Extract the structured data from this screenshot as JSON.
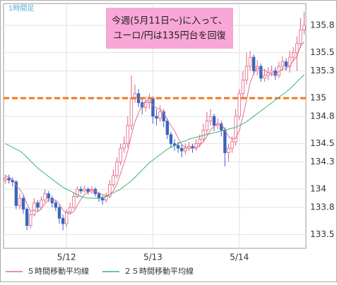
{
  "chart_data": {
    "type": "candlestick",
    "timeframe_label": "1時間足",
    "annotation": [
      "今週(5月11日〜)に入って、",
      "ユーロ/円は135円台を回復"
    ],
    "categories": [
      null,
      null,
      null,
      null,
      null,
      null,
      null,
      null,
      null,
      null,
      null,
      null,
      null,
      null,
      null,
      null,
      null,
      "5/12",
      null,
      null,
      null,
      null,
      null,
      null,
      null,
      null,
      null,
      null,
      null,
      null,
      null,
      null,
      null,
      null,
      null,
      null,
      null,
      null,
      null,
      null,
      null,
      "5/13",
      null,
      null,
      null,
      null,
      null,
      null,
      null,
      null,
      null,
      null,
      null,
      null,
      null,
      null,
      null,
      null,
      null,
      null,
      null,
      null,
      null,
      null,
      null,
      "5/14",
      null,
      null,
      null,
      null,
      null,
      null,
      null,
      null,
      null,
      null,
      null,
      null,
      null,
      null,
      null,
      null,
      null,
      null
    ],
    "open": [
      134.1,
      134.12,
      134.1,
      134.08,
      133.82,
      133.9,
      133.78,
      133.6,
      133.72,
      133.85,
      133.8,
      133.88,
      133.95,
      133.9,
      133.85,
      133.8,
      133.68,
      133.62,
      133.75,
      133.8,
      133.92,
      134.0,
      133.98,
      134.0,
      133.97,
      134.0,
      133.95,
      133.9,
      133.88,
      133.92,
      134.05,
      134.15,
      134.3,
      134.45,
      134.5,
      134.7,
      135.0,
      135.05,
      134.95,
      134.9,
      134.95,
      135.0,
      134.8,
      134.78,
      134.85,
      134.75,
      134.6,
      134.5,
      134.48,
      134.45,
      134.42,
      134.45,
      134.47,
      134.45,
      134.5,
      134.55,
      134.65,
      134.75,
      134.8,
      134.7,
      134.72,
      134.65,
      134.4,
      134.45,
      134.52,
      134.8,
      135.05,
      135.2,
      135.35,
      135.45,
      135.3,
      135.35,
      135.22,
      135.25,
      135.28,
      135.3,
      135.25,
      135.35,
      135.4,
      135.35,
      135.45,
      135.5,
      135.6,
      135.75
    ],
    "high": [
      134.16,
      134.16,
      134.13,
      134.1,
      133.95,
      133.93,
      133.8,
      133.76,
      133.9,
      133.88,
      133.92,
      134.0,
      133.98,
      133.93,
      133.88,
      133.83,
      133.72,
      133.78,
      133.85,
      133.96,
      134.03,
      134.03,
      134.04,
      134.02,
      134.03,
      134.02,
      133.97,
      133.93,
      133.96,
      134.1,
      134.22,
      134.35,
      134.5,
      134.58,
      134.8,
      135.25,
      135.15,
      135.1,
      135.0,
      135.02,
      135.05,
      135.02,
      134.88,
      134.92,
      134.88,
      134.78,
      134.63,
      134.55,
      134.52,
      134.5,
      134.5,
      134.52,
      134.5,
      134.55,
      134.6,
      134.72,
      134.85,
      134.88,
      134.83,
      134.78,
      134.75,
      134.68,
      134.5,
      134.58,
      134.88,
      135.1,
      135.3,
      135.5,
      135.52,
      135.48,
      135.42,
      135.38,
      135.32,
      135.34,
      135.36,
      135.34,
      135.4,
      135.46,
      135.44,
      135.52,
      135.56,
      135.68,
      135.88,
      135.95
    ],
    "low": [
      134.06,
      134.06,
      134.03,
      133.78,
      133.78,
      133.73,
      133.55,
      133.57,
      133.7,
      133.76,
      133.77,
      133.85,
      133.86,
      133.8,
      133.76,
      133.62,
      133.55,
      133.58,
      133.72,
      133.78,
      133.9,
      133.95,
      133.96,
      133.94,
      133.95,
      133.92,
      133.86,
      133.83,
      133.85,
      133.9,
      134.02,
      134.12,
      134.26,
      134.4,
      134.46,
      134.65,
      134.95,
      134.9,
      134.82,
      134.85,
      134.88,
      134.72,
      134.7,
      134.74,
      134.68,
      134.55,
      134.45,
      134.42,
      134.4,
      134.35,
      134.38,
      134.42,
      134.4,
      134.42,
      134.46,
      134.52,
      134.6,
      134.7,
      134.64,
      134.66,
      134.58,
      134.25,
      134.3,
      134.4,
      134.48,
      134.76,
      135.0,
      135.15,
      135.3,
      135.25,
      135.25,
      135.18,
      135.18,
      135.2,
      135.24,
      135.2,
      135.22,
      135.3,
      135.3,
      135.28,
      135.4,
      135.3,
      135.55,
      135.7
    ],
    "close": [
      134.12,
      134.1,
      134.08,
      133.82,
      133.9,
      133.78,
      133.6,
      133.72,
      133.85,
      133.8,
      133.88,
      133.95,
      133.9,
      133.85,
      133.8,
      133.68,
      133.62,
      133.75,
      133.8,
      133.92,
      134.0,
      133.98,
      134.0,
      133.97,
      134.0,
      133.95,
      133.9,
      133.88,
      133.92,
      134.05,
      134.15,
      134.3,
      134.45,
      134.5,
      134.7,
      135.0,
      135.05,
      134.95,
      134.9,
      134.95,
      135.0,
      134.8,
      134.78,
      134.85,
      134.75,
      134.6,
      134.5,
      134.48,
      134.45,
      134.42,
      134.45,
      134.47,
      134.45,
      134.5,
      134.55,
      134.65,
      134.75,
      134.8,
      134.7,
      134.72,
      134.65,
      134.4,
      134.45,
      134.52,
      134.8,
      135.05,
      135.2,
      135.35,
      135.45,
      135.3,
      135.35,
      135.22,
      135.25,
      135.28,
      135.3,
      135.25,
      135.35,
      135.4,
      135.35,
      135.45,
      135.5,
      135.6,
      135.75,
      135.8
    ],
    "up_color": "#e06080",
    "down_color": "#3a64c0",
    "series": [
      {
        "name": "５時間移動平均線",
        "color": "#e07090",
        "values": [
          134.15,
          134.13,
          134.11,
          134.04,
          134.0,
          133.94,
          133.84,
          133.76,
          133.77,
          133.75,
          133.79,
          133.84,
          133.88,
          133.88,
          133.88,
          133.84,
          133.77,
          133.74,
          133.73,
          133.75,
          133.82,
          133.89,
          133.94,
          133.97,
          133.99,
          133.98,
          133.96,
          133.94,
          133.93,
          133.94,
          133.98,
          134.06,
          134.17,
          134.29,
          134.42,
          134.59,
          134.74,
          134.84,
          134.92,
          134.97,
          134.97,
          134.92,
          134.89,
          134.88,
          134.84,
          134.76,
          134.7,
          134.64,
          134.56,
          134.49,
          134.46,
          134.45,
          134.45,
          134.46,
          134.48,
          134.52,
          134.58,
          134.65,
          134.69,
          134.72,
          134.72,
          134.65,
          134.58,
          134.55,
          134.56,
          134.64,
          134.8,
          134.98,
          135.17,
          135.27,
          135.33,
          135.31,
          135.31,
          135.28,
          135.26,
          135.26,
          135.29,
          135.32,
          135.33,
          135.35,
          135.41,
          135.46,
          135.57,
          135.62
        ]
      },
      {
        "name": "２５時間移動平均線",
        "color": "#3cb371",
        "values": [
          134.5,
          134.48,
          134.46,
          134.44,
          134.42,
          134.39,
          134.35,
          134.31,
          134.27,
          134.23,
          134.2,
          134.17,
          134.14,
          134.11,
          134.08,
          134.05,
          134.02,
          134.0,
          133.98,
          133.96,
          133.94,
          133.92,
          133.91,
          133.9,
          133.9,
          133.9,
          133.9,
          133.91,
          133.92,
          133.94,
          133.96,
          133.98,
          134.0,
          134.03,
          134.06,
          134.09,
          134.13,
          134.17,
          134.21,
          134.25,
          134.29,
          134.32,
          134.35,
          134.38,
          134.41,
          134.44,
          134.46,
          134.48,
          134.5,
          134.52,
          134.53,
          134.55,
          134.56,
          134.57,
          134.58,
          134.59,
          134.6,
          134.61,
          134.62,
          134.63,
          134.64,
          134.65,
          134.66,
          134.67,
          134.68,
          134.7,
          134.72,
          134.74,
          134.77,
          134.8,
          134.83,
          134.86,
          134.89,
          134.92,
          134.95,
          134.98,
          135.01,
          135.04,
          135.07,
          135.1,
          135.14,
          135.18,
          135.22,
          135.26
        ]
      }
    ],
    "reference_line": {
      "value": 135,
      "color": "#f07820"
    },
    "ylim": [
      133.35,
      136.04
    ],
    "yticks": [
      133.5,
      133.8,
      134,
      134.3,
      134.5,
      134.8,
      135,
      135.3,
      135.5,
      135.8
    ],
    "grid": true
  }
}
